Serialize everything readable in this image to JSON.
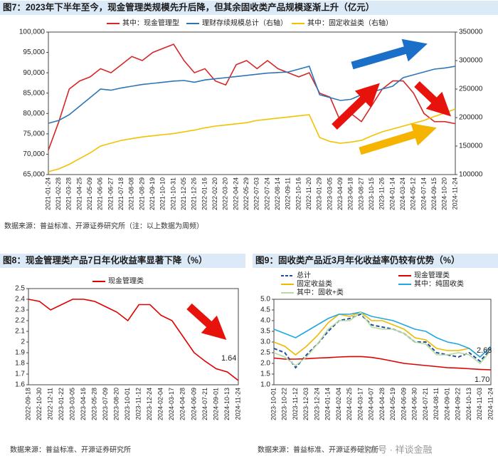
{
  "chart_data": [
    {
      "type": "line",
      "title": "图7：2023年下半年至今，现金管理类规模先升后降，但其余固收类产品规模逐渐上升（亿元）",
      "source": "数据来源：普益标准、开源证券研究所（注：以上数据为周频）",
      "legend": "top",
      "categories": [
        "2021-01-24",
        "2021-02-28",
        "2021-03-28",
        "2021-04-25",
        "2021-05-09",
        "2021-06-06",
        "2021-06-27",
        "2021-07-18",
        "2021-08-08",
        "2021-08-29",
        "2021-09-19",
        "2021-10-10",
        "2021-10-31",
        "2021-12-05",
        "2021-12-26",
        "2022-01-16",
        "2022-02-20",
        "2022-03-20",
        "2022-04-24",
        "2022-05-29",
        "2022-07-03",
        "2022-07-24",
        "2022-08-14",
        "2022-09-11",
        "2022-10-16",
        "2022-11-20",
        "2023-01-29",
        "2023-03-05",
        "2023-04-09",
        "2023-06-18",
        "2023-08-27",
        "2023-10-15",
        "2023-11-26",
        "2024-01-14",
        "2024-03-24",
        "2024-05-12",
        "2024-07-14",
        "2024-09-15",
        "2024-10-20",
        "2024-11-24"
      ],
      "series": [
        {
          "name": "其中：现金管理型",
          "color": "#d62728",
          "values": [
            71000,
            78000,
            86000,
            88000,
            89000,
            91000,
            90000,
            92000,
            94000,
            93000,
            95000,
            96000,
            97000,
            93000,
            90000,
            91000,
            88000,
            87000,
            92000,
            93000,
            91000,
            93000,
            91000,
            90000,
            89000,
            90000,
            85000,
            84000,
            78000,
            80000,
            78000,
            82000,
            86000,
            88000,
            88000,
            85000,
            80000,
            78000,
            78000,
            77500
          ]
        },
        {
          "name": "理财存续规模总计（右轴）",
          "color": "#2e75b6",
          "axis": "y2",
          "values": [
            190000,
            195000,
            205000,
            220000,
            235000,
            250000,
            248000,
            252000,
            255000,
            258000,
            260000,
            262000,
            264000,
            265000,
            262000,
            266000,
            268000,
            270000,
            272000,
            274000,
            276000,
            278000,
            279000,
            280000,
            285000,
            290000,
            240000,
            235000,
            230000,
            232000,
            240000,
            245000,
            250000,
            255000,
            270000,
            275000,
            280000,
            285000,
            287000,
            290000
          ]
        },
        {
          "name": "其中：固定收益类（右轴）",
          "color": "#f2c200",
          "axis": "y2",
          "values": [
            105000,
            110000,
            118000,
            128000,
            138000,
            150000,
            155000,
            160000,
            163000,
            166000,
            168000,
            170000,
            172000,
            175000,
            178000,
            182000,
            185000,
            187000,
            189000,
            191000,
            195000,
            197000,
            199000,
            201000,
            203000,
            205000,
            165000,
            158000,
            155000,
            157000,
            160000,
            168000,
            175000,
            180000,
            185000,
            190000,
            195000,
            202000,
            208000,
            215000
          ]
        }
      ],
      "ylim": [
        65000,
        100000
      ],
      "yticks": [
        {
          "value": 65000,
          "label": "65,000"
        },
        {
          "value": 70000,
          "label": "70,000"
        },
        {
          "value": 75000,
          "label": "75,000"
        },
        {
          "value": 80000,
          "label": "80,000"
        },
        {
          "value": 85000,
          "label": "85,000"
        },
        {
          "value": 90000,
          "label": "90,000"
        },
        {
          "value": 95000,
          "label": "95,000"
        },
        {
          "value": 100000,
          "label": "100,000"
        }
      ],
      "y2lim": [
        100000,
        350000
      ],
      "y2ticks": [
        100000,
        150000,
        200000,
        250000,
        300000,
        350000
      ]
    },
    {
      "type": "line",
      "title": "图8：现金管理类产品7日年化收益率显著下降（%）",
      "source": "数据来源：普益标准、开源证券研究所",
      "legend": "top",
      "categories": [
        "2022-09-18",
        "2022-10-30",
        "2022-12-11",
        "2023-01-22",
        "2023-03-05",
        "2023-04-16",
        "2023-05-28",
        "2023-07-09",
        "2023-08-20",
        "2023-10-01",
        "2023-11-12",
        "2023-12-24",
        "2024-02-04",
        "2024-03-17",
        "2024-04-28",
        "2024-06-09",
        "2024-07-21",
        "2024-09-01",
        "2024-10-13",
        "2024-11-24"
      ],
      "series": [
        {
          "name": "现金管理类",
          "color": "#e00000",
          "values": [
            2.4,
            2.38,
            2.3,
            2.35,
            2.4,
            2.4,
            2.38,
            2.33,
            2.28,
            2.2,
            2.35,
            2.35,
            2.25,
            2.2,
            2.05,
            1.9,
            1.82,
            1.75,
            1.72,
            1.64
          ]
        }
      ],
      "annotations": [
        "1.64"
      ],
      "ylim": [
        1.6,
        2.5
      ],
      "yticks": [
        1.6,
        1.7,
        1.8,
        1.9,
        2,
        2.1,
        2.2,
        2.3,
        2.4,
        2.5
      ]
    },
    {
      "type": "line",
      "title": "图9：固收类产品近3月年化收益率仍较有优势（%）",
      "source": "数据来源：普益标准、开源证券研究所",
      "legend": "top",
      "categories": [
        "2023-10-01",
        "2023-10-22",
        "2023-11-12",
        "2023-12-03",
        "2023-12-24",
        "2024-01-14",
        "2024-02-04",
        "2024-02-25",
        "2024-03-17",
        "2024-04-07",
        "2024-04-28",
        "2024-05-19",
        "2024-06-09",
        "2024-06-30",
        "2024-07-21",
        "2024-08-11",
        "2024-09-01",
        "2024-09-22",
        "2024-10-13",
        "2024-11-03",
        "2024-11-24"
      ],
      "series": [
        {
          "name": "总计",
          "color": "#1f4e9c",
          "dash": true,
          "values": [
            2.7,
            2.5,
            1.8,
            2.4,
            2.9,
            3.5,
            4.0,
            4.1,
            4.3,
            3.8,
            3.7,
            3.6,
            3.4,
            3.0,
            3.0,
            2.5,
            2.4,
            2.3,
            2.5,
            2.1,
            2.68
          ]
        },
        {
          "name": "现金管理类",
          "color": "#e00000",
          "values": [
            2.25,
            2.2,
            2.2,
            2.22,
            2.25,
            2.27,
            2.3,
            2.32,
            2.32,
            2.28,
            2.2,
            2.1,
            2.0,
            1.95,
            1.9,
            1.85,
            1.8,
            1.78,
            1.75,
            1.72,
            1.7
          ]
        },
        {
          "name": "固定收益类",
          "color": "#f2b800",
          "values": [
            3.0,
            2.8,
            2.4,
            2.8,
            3.3,
            3.9,
            4.3,
            4.2,
            4.4,
            4.0,
            4.0,
            3.8,
            3.6,
            3.2,
            3.1,
            2.7,
            2.6,
            2.6,
            2.7,
            2.3,
            2.8
          ]
        },
        {
          "name": "其中：纯固收类",
          "color": "#22a7e0",
          "values": [
            3.6,
            3.4,
            3.2,
            3.5,
            3.8,
            4.1,
            4.3,
            4.3,
            4.4,
            4.2,
            4.1,
            4.0,
            3.8,
            3.6,
            3.5,
            3.2,
            3.0,
            2.9,
            2.7,
            2.3,
            2.8
          ]
        },
        {
          "name": "其中：固收+类",
          "color": "#b7dba0",
          "values": [
            2.5,
            2.3,
            1.9,
            2.3,
            2.9,
            3.6,
            4.0,
            4.0,
            4.4,
            3.7,
            3.6,
            3.6,
            3.4,
            3.0,
            2.9,
            2.4,
            2.4,
            2.5,
            2.4,
            2.0,
            2.6
          ]
        }
      ],
      "annotations": [
        "2.68",
        "1.70"
      ],
      "ylim": [
        1,
        5
      ],
      "yticks": [
        {
          "value": 1,
          "label": "1.0"
        },
        {
          "value": 1.5,
          "label": "1.5"
        },
        {
          "value": 2,
          "label": "2.0"
        },
        {
          "value": 2.5,
          "label": "2.5"
        },
        {
          "value": 3,
          "label": "3.0"
        },
        {
          "value": 3.5,
          "label": "3.5"
        },
        {
          "value": 4,
          "label": "4.0"
        },
        {
          "value": 4.5,
          "label": "4.5"
        },
        {
          "value": 5,
          "label": "5.0"
        }
      ]
    }
  ],
  "watermark": "公众号 · 祥谈金融"
}
